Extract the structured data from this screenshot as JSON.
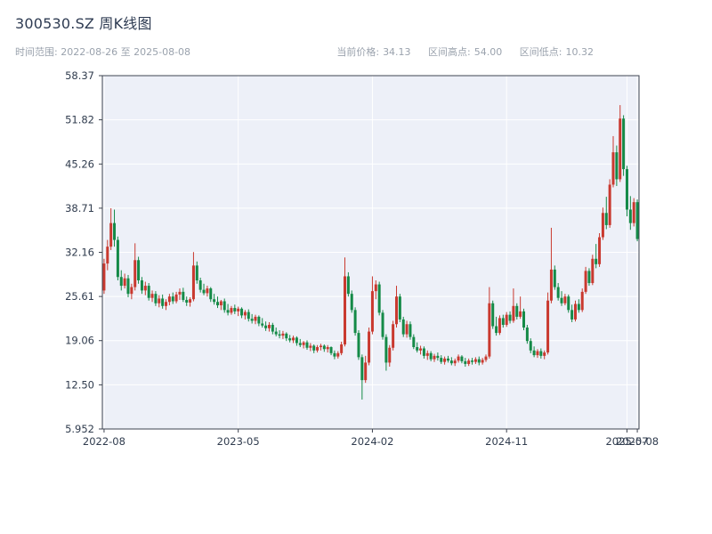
{
  "header": {
    "title": "300530.SZ 周K线图",
    "time_range_label": "时间范围: 2022-08-26 至 2025-08-08",
    "stats": [
      {
        "label": "当前价格:",
        "value": "34.13"
      },
      {
        "label": "区间高点:",
        "value": "54.00"
      },
      {
        "label": "区间低点:",
        "value": "10.32"
      }
    ]
  },
  "chart_data": {
    "type": "candlestick",
    "title": "300530.SZ 周K线图",
    "frequency": "weekly",
    "x_start": "2022-08-26",
    "x_end": "2025-08-08",
    "current_price": 34.13,
    "range_high": 54.0,
    "range_low": 10.32,
    "ylim": [
      5.952,
      58.37
    ],
    "y_ticks": [
      {
        "value": 58.37,
        "label": "58.37"
      },
      {
        "value": 51.82,
        "label": "51.82"
      },
      {
        "value": 45.26,
        "label": "45.26"
      },
      {
        "value": 38.71,
        "label": "38.71"
      },
      {
        "value": 32.16,
        "label": "32.16"
      },
      {
        "value": 25.61,
        "label": "25.61"
      },
      {
        "value": 19.06,
        "label": "19.06"
      },
      {
        "value": 12.5,
        "label": "12.50"
      },
      {
        "value": 5.952,
        "label": "5.952"
      }
    ],
    "x_ticks": [
      {
        "index": 0,
        "label": "2022-08"
      },
      {
        "index": 39,
        "label": "2023-05"
      },
      {
        "index": 78,
        "label": "2024-02"
      },
      {
        "index": 117,
        "label": "2024-11"
      },
      {
        "index": 152,
        "label": "2025-07"
      },
      {
        "index": 155,
        "label": "2025-08"
      }
    ],
    "colors": {
      "up": "#c9392f",
      "down": "#148a47",
      "plot_bg": "#edf0f8",
      "grid": "#ffffff",
      "border": "#3d4350",
      "tick_text": "#303c4e"
    },
    "legend": "red = up week, green = down week",
    "ohlc": [
      [
        26.5,
        31.2,
        26.0,
        30.5
      ],
      [
        30.5,
        34.0,
        29.5,
        33.0
      ],
      [
        33.0,
        38.7,
        32.5,
        36.5
      ],
      [
        36.5,
        38.5,
        33.0,
        34.0
      ],
      [
        34.0,
        34.5,
        28.0,
        28.5
      ],
      [
        28.5,
        29.5,
        26.5,
        27.2
      ],
      [
        27.2,
        29.0,
        26.8,
        28.3
      ],
      [
        28.3,
        28.8,
        25.5,
        26.0
      ],
      [
        26.0,
        27.5,
        25.2,
        27.0
      ],
      [
        27.0,
        33.5,
        26.5,
        31.0
      ],
      [
        31.0,
        31.5,
        27.5,
        28.0
      ],
      [
        28.0,
        28.5,
        26.0,
        26.5
      ],
      [
        26.5,
        27.8,
        25.8,
        27.2
      ],
      [
        27.2,
        27.6,
        25.0,
        25.4
      ],
      [
        25.4,
        26.5,
        24.8,
        26.0
      ],
      [
        26.0,
        26.4,
        24.2,
        24.6
      ],
      [
        24.6,
        25.8,
        24.0,
        25.3
      ],
      [
        25.3,
        25.9,
        23.8,
        24.2
      ],
      [
        24.2,
        25.2,
        23.6,
        24.8
      ],
      [
        24.8,
        26.0,
        24.3,
        25.6
      ],
      [
        25.6,
        26.2,
        24.5,
        24.9
      ],
      [
        24.9,
        26.3,
        24.6,
        25.9
      ],
      [
        25.9,
        26.8,
        25.1,
        26.3
      ],
      [
        26.3,
        26.9,
        24.8,
        25.1
      ],
      [
        25.1,
        25.6,
        24.2,
        24.7
      ],
      [
        24.7,
        25.5,
        24.1,
        25.2
      ],
      [
        25.2,
        32.2,
        24.9,
        30.2
      ],
      [
        30.2,
        30.8,
        27.5,
        28.0
      ],
      [
        28.0,
        28.4,
        26.2,
        26.6
      ],
      [
        26.6,
        27.5,
        25.8,
        26.1
      ],
      [
        26.1,
        27.2,
        25.6,
        26.8
      ],
      [
        26.8,
        27.0,
        24.8,
        25.2
      ],
      [
        25.2,
        26.0,
        24.4,
        24.8
      ],
      [
        24.8,
        25.6,
        23.9,
        24.3
      ],
      [
        24.3,
        25.1,
        23.6,
        24.9
      ],
      [
        24.9,
        25.3,
        23.2,
        23.6
      ],
      [
        23.6,
        24.5,
        22.8,
        23.2
      ],
      [
        23.2,
        24.2,
        22.9,
        23.9
      ],
      [
        23.9,
        24.4,
        23.0,
        23.4
      ],
      [
        23.4,
        24.1,
        22.7,
        23.8
      ],
      [
        23.8,
        24.0,
        22.4,
        22.8
      ],
      [
        22.8,
        23.6,
        22.2,
        23.3
      ],
      [
        23.3,
        23.7,
        21.9,
        22.3
      ],
      [
        22.3,
        23.0,
        21.6,
        22.0
      ],
      [
        22.0,
        22.9,
        21.5,
        22.6
      ],
      [
        22.6,
        22.8,
        21.2,
        21.6
      ],
      [
        21.6,
        22.4,
        21.0,
        21.3
      ],
      [
        21.3,
        21.9,
        20.5,
        20.9
      ],
      [
        20.9,
        21.8,
        20.4,
        21.4
      ],
      [
        21.4,
        21.7,
        20.0,
        20.4
      ],
      [
        20.4,
        21.0,
        19.7,
        20.0
      ],
      [
        20.0,
        20.6,
        19.4,
        19.8
      ],
      [
        19.8,
        20.5,
        19.3,
        20.1
      ],
      [
        20.1,
        20.3,
        19.0,
        19.4
      ],
      [
        19.4,
        19.9,
        18.8,
        19.1
      ],
      [
        19.1,
        19.8,
        18.7,
        19.5
      ],
      [
        19.5,
        19.7,
        18.3,
        18.7
      ],
      [
        18.7,
        19.3,
        18.1,
        18.4
      ],
      [
        18.4,
        19.0,
        17.9,
        18.8
      ],
      [
        18.8,
        19.1,
        17.7,
        18.0
      ],
      [
        18.0,
        18.7,
        17.5,
        18.3
      ],
      [
        18.3,
        18.5,
        17.2,
        17.6
      ],
      [
        17.6,
        18.4,
        17.3,
        18.1
      ],
      [
        18.1,
        18.6,
        17.6,
        18.3
      ],
      [
        18.3,
        18.5,
        17.4,
        17.8
      ],
      [
        17.8,
        18.4,
        17.3,
        18.1
      ],
      [
        18.1,
        18.2,
        16.9,
        17.2
      ],
      [
        17.2,
        17.6,
        16.3,
        16.7
      ],
      [
        16.7,
        17.5,
        16.4,
        17.2
      ],
      [
        17.2,
        18.9,
        16.9,
        18.5
      ],
      [
        18.5,
        31.4,
        18.2,
        28.6
      ],
      [
        28.6,
        29.2,
        25.6,
        26.0
      ],
      [
        26.0,
        26.5,
        23.2,
        23.6
      ],
      [
        23.6,
        24.0,
        19.8,
        20.2
      ],
      [
        20.2,
        20.6,
        16.2,
        16.6
      ],
      [
        16.6,
        17.0,
        10.32,
        13.2
      ],
      [
        13.2,
        16.8,
        12.8,
        15.8
      ],
      [
        15.8,
        21.0,
        15.4,
        20.4
      ],
      [
        20.4,
        28.6,
        20.0,
        26.4
      ],
      [
        26.4,
        28.0,
        25.2,
        27.4
      ],
      [
        27.4,
        27.8,
        22.8,
        23.2
      ],
      [
        23.2,
        23.6,
        19.2,
        19.6
      ],
      [
        19.6,
        20.0,
        14.6,
        15.8
      ],
      [
        15.8,
        18.4,
        15.2,
        18.0
      ],
      [
        18.0,
        22.0,
        17.6,
        21.5
      ],
      [
        21.5,
        27.2,
        21.0,
        25.6
      ],
      [
        25.6,
        26.0,
        21.8,
        22.2
      ],
      [
        22.2,
        22.6,
        19.6,
        20.0
      ],
      [
        20.0,
        22.0,
        19.5,
        21.5
      ],
      [
        21.5,
        21.9,
        19.2,
        19.6
      ],
      [
        19.6,
        20.0,
        17.8,
        18.1
      ],
      [
        18.1,
        18.8,
        17.3,
        17.6
      ],
      [
        17.6,
        18.3,
        17.0,
        17.9
      ],
      [
        17.9,
        18.2,
        16.4,
        16.8
      ],
      [
        16.8,
        17.6,
        16.2,
        17.2
      ],
      [
        17.2,
        17.5,
        16.0,
        16.3
      ],
      [
        16.3,
        17.1,
        15.9,
        16.8
      ],
      [
        16.8,
        17.3,
        16.1,
        16.5
      ],
      [
        16.5,
        16.9,
        15.6,
        15.9
      ],
      [
        15.9,
        16.7,
        15.5,
        16.4
      ],
      [
        16.4,
        16.8,
        15.8,
        16.1
      ],
      [
        16.1,
        16.6,
        15.4,
        15.7
      ],
      [
        15.7,
        16.4,
        15.3,
        16.1
      ],
      [
        16.1,
        17.0,
        15.8,
        16.7
      ],
      [
        16.7,
        16.9,
        15.7,
        16.0
      ],
      [
        16.0,
        16.5,
        15.2,
        15.6
      ],
      [
        15.6,
        16.4,
        15.3,
        16.1
      ],
      [
        16.1,
        16.5,
        15.5,
        15.9
      ],
      [
        15.9,
        16.6,
        15.6,
        16.3
      ],
      [
        16.3,
        16.7,
        15.4,
        15.8
      ],
      [
        15.8,
        16.5,
        15.5,
        16.2
      ],
      [
        16.2,
        17.0,
        15.9,
        16.7
      ],
      [
        16.7,
        27.0,
        16.4,
        24.6
      ],
      [
        24.6,
        25.0,
        20.8,
        21.2
      ],
      [
        21.2,
        22.6,
        19.8,
        20.2
      ],
      [
        20.2,
        22.8,
        19.9,
        22.4
      ],
      [
        22.4,
        22.9,
        21.0,
        21.4
      ],
      [
        21.4,
        23.3,
        21.1,
        22.9
      ],
      [
        22.9,
        23.4,
        21.6,
        22.0
      ],
      [
        22.0,
        26.8,
        21.7,
        24.2
      ],
      [
        24.2,
        24.6,
        22.2,
        22.6
      ],
      [
        22.6,
        25.6,
        22.3,
        23.4
      ],
      [
        23.4,
        23.8,
        20.6,
        21.0
      ],
      [
        21.0,
        21.4,
        18.6,
        19.0
      ],
      [
        19.0,
        19.4,
        17.2,
        17.6
      ],
      [
        17.6,
        18.2,
        16.6,
        16.9
      ],
      [
        16.9,
        17.8,
        16.5,
        17.5
      ],
      [
        17.5,
        17.9,
        16.4,
        16.8
      ],
      [
        16.8,
        17.6,
        16.3,
        17.3
      ],
      [
        17.3,
        26.2,
        17.0,
        25.0
      ],
      [
        25.0,
        35.8,
        24.6,
        29.6
      ],
      [
        29.6,
        30.2,
        26.6,
        27.0
      ],
      [
        27.0,
        27.6,
        25.0,
        25.4
      ],
      [
        25.4,
        26.4,
        24.2,
        24.6
      ],
      [
        24.6,
        26.0,
        24.3,
        25.6
      ],
      [
        25.6,
        25.9,
        23.2,
        23.6
      ],
      [
        23.6,
        24.4,
        21.8,
        22.2
      ],
      [
        22.2,
        25.0,
        21.9,
        24.5
      ],
      [
        24.5,
        25.2,
        23.2,
        23.6
      ],
      [
        23.6,
        26.8,
        23.3,
        26.3
      ],
      [
        26.3,
        30.0,
        26.0,
        29.4
      ],
      [
        29.4,
        29.8,
        27.2,
        27.6
      ],
      [
        27.6,
        31.8,
        27.3,
        31.2
      ],
      [
        31.2,
        33.4,
        29.8,
        30.4
      ],
      [
        30.4,
        35.0,
        30.0,
        34.4
      ],
      [
        34.4,
        38.8,
        34.0,
        38.0
      ],
      [
        38.0,
        40.4,
        35.6,
        36.2
      ],
      [
        36.2,
        43.0,
        35.8,
        42.2
      ],
      [
        42.2,
        49.4,
        41.8,
        47.0
      ],
      [
        47.0,
        48.0,
        42.0,
        43.0
      ],
      [
        43.0,
        54.0,
        42.6,
        52.0
      ],
      [
        52.0,
        52.5,
        43.5,
        44.5
      ],
      [
        44.5,
        45.0,
        37.5,
        38.5
      ],
      [
        38.5,
        40.5,
        35.5,
        36.5
      ],
      [
        36.5,
        40.2,
        36.0,
        39.6
      ],
      [
        39.6,
        40.0,
        33.8,
        34.13
      ]
    ]
  }
}
